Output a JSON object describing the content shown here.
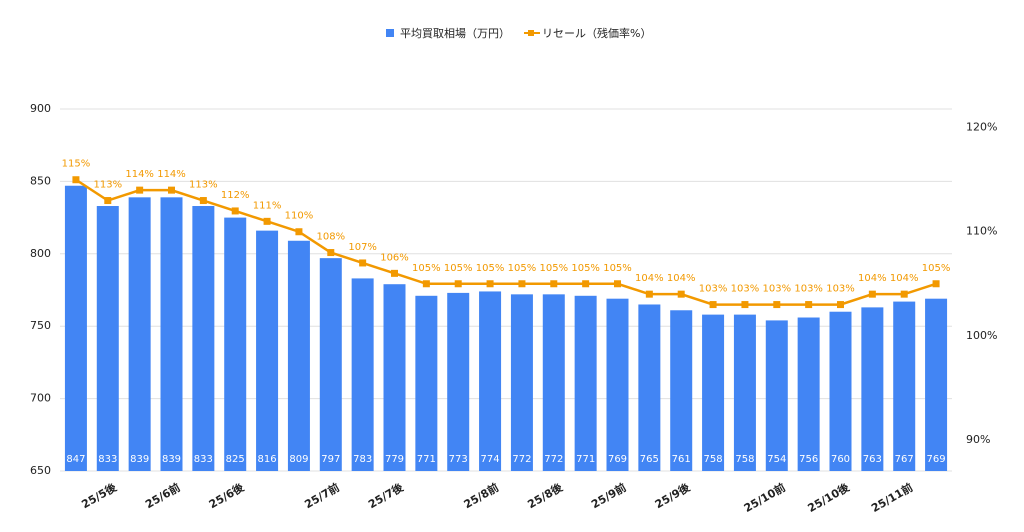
{
  "chart_data": {
    "type": "bar_line",
    "categories": [
      null,
      "25/5後",
      null,
      "25/6前",
      null,
      "25/6後",
      null,
      null,
      "25/7前",
      null,
      "25/7後",
      null,
      null,
      "25/8前",
      null,
      "25/8後",
      null,
      "25/9前",
      null,
      "25/9後",
      null,
      null,
      "25/10前",
      null,
      "25/10後",
      null,
      "25/11前",
      null
    ],
    "series": [
      {
        "name": "平均買取相場（万円）",
        "color": "#4285f4",
        "type": "bar",
        "values": [
          847,
          833,
          839,
          839,
          833,
          825,
          816,
          809,
          797,
          783,
          779,
          771,
          773,
          774,
          772,
          772,
          771,
          769,
          765,
          761,
          758,
          758,
          754,
          756,
          760,
          763,
          767,
          769
        ]
      },
      {
        "name": "リセール（残価率%）",
        "color": "#f29900",
        "type": "line",
        "axis": "y2",
        "values": [
          115,
          113,
          114,
          114,
          113,
          112,
          111,
          110,
          108,
          107,
          106,
          105,
          105,
          105,
          105,
          105,
          105,
          105,
          104,
          104,
          103,
          103,
          103,
          103,
          103,
          104,
          104,
          105
        ],
        "value_labels": [
          "115%",
          "113%",
          "114%",
          "114%",
          "113%",
          "112%",
          "111%",
          "110%",
          "108%",
          "107%",
          "106%",
          "105%",
          "105%",
          "105%",
          "105%",
          "105%",
          "105%",
          "105%",
          "104%",
          "104%",
          "103%",
          "103%",
          "103%",
          "103%",
          "103%",
          "104%",
          "104%",
          "105%"
        ]
      }
    ],
    "ylim": [
      650,
      900
    ],
    "yticks": [
      650,
      700,
      750,
      800,
      850,
      900
    ],
    "y2lim": [
      87,
      121.8
    ],
    "y2ticks": [
      {
        "value": 90,
        "label": "90%"
      },
      {
        "value": 100,
        "label": "100%"
      },
      {
        "value": 110,
        "label": "110%"
      },
      {
        "value": 120,
        "label": "120%"
      }
    ],
    "grid": true,
    "legend": "top"
  }
}
